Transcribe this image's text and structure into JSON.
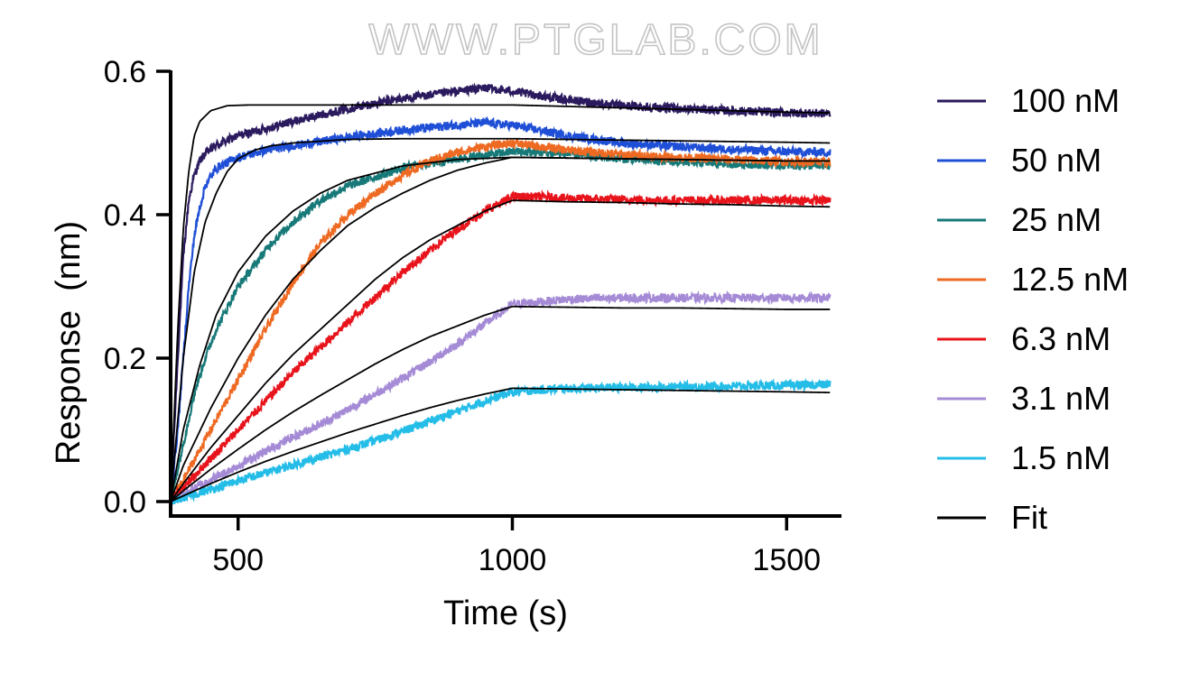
{
  "watermark": "WWW.PTGLAB.COM",
  "chart_data": {
    "type": "line",
    "xlabel": "Time (s)",
    "ylabel": "Response  (nm)",
    "xlim": [
      377,
      1600
    ],
    "ylim": [
      0,
      0.6
    ],
    "x_ticks": [
      500,
      1000,
      1500
    ],
    "x_tick_labels": [
      "500",
      "1000",
      "1500"
    ],
    "y_ticks": [
      0,
      0.2,
      0.4,
      0.6
    ],
    "y_tick_labels": [
      "0.0",
      "0.2",
      "0.4",
      "0.6"
    ],
    "grid": false,
    "legend_position": "right",
    "association_start": 377,
    "dissociation_start": 1000,
    "x_end": 1580,
    "series": [
      {
        "name": "100 nM",
        "color": "#2b1a5e",
        "kind": "data",
        "x": [
          377,
          390,
          400,
          410,
          420,
          430,
          440,
          460,
          500,
          550,
          600,
          700,
          800,
          900,
          950,
          1000,
          1100,
          1200,
          1300,
          1400,
          1500,
          1580
        ],
        "y": [
          0.0,
          0.2,
          0.34,
          0.42,
          0.455,
          0.475,
          0.485,
          0.497,
          0.51,
          0.52,
          0.53,
          0.548,
          0.562,
          0.572,
          0.577,
          0.572,
          0.56,
          0.552,
          0.548,
          0.545,
          0.542,
          0.541
        ]
      },
      {
        "name": "50 nM",
        "color": "#1f4fd6",
        "kind": "data",
        "x": [
          377,
          390,
          400,
          410,
          420,
          430,
          440,
          460,
          500,
          550,
          600,
          700,
          800,
          900,
          950,
          1000,
          1100,
          1200,
          1300,
          1400,
          1500,
          1580
        ],
        "y": [
          0.0,
          0.1,
          0.2,
          0.3,
          0.37,
          0.41,
          0.44,
          0.465,
          0.48,
          0.49,
          0.496,
          0.508,
          0.518,
          0.525,
          0.528,
          0.525,
          0.51,
          0.5,
          0.495,
          0.491,
          0.488,
          0.487
        ]
      },
      {
        "name": "25 nM",
        "color": "#177978",
        "kind": "data",
        "x": [
          377,
          400,
          420,
          440,
          460,
          480,
          500,
          530,
          560,
          600,
          650,
          700,
          800,
          900,
          1000,
          1100,
          1200,
          1300,
          1400,
          1500,
          1580
        ],
        "y": [
          0.0,
          0.08,
          0.15,
          0.2,
          0.24,
          0.27,
          0.3,
          0.33,
          0.36,
          0.39,
          0.42,
          0.44,
          0.465,
          0.478,
          0.488,
          0.485,
          0.478,
          0.474,
          0.471,
          0.469,
          0.468
        ]
      },
      {
        "name": "12.5 nM",
        "color": "#ee6a22",
        "kind": "data",
        "x": [
          377,
          400,
          450,
          500,
          550,
          600,
          650,
          700,
          750,
          800,
          850,
          900,
          950,
          1000,
          1050,
          1100,
          1200,
          1300,
          1400,
          1500,
          1580
        ],
        "y": [
          0.0,
          0.03,
          0.1,
          0.17,
          0.24,
          0.305,
          0.36,
          0.4,
          0.43,
          0.455,
          0.475,
          0.487,
          0.495,
          0.5,
          0.495,
          0.49,
          0.484,
          0.48,
          0.477,
          0.474,
          0.473
        ]
      },
      {
        "name": "6.3 nM",
        "color": "#e8141c",
        "kind": "data",
        "x": [
          377,
          400,
          450,
          500,
          550,
          600,
          650,
          700,
          750,
          800,
          850,
          900,
          950,
          1000,
          1050,
          1100,
          1200,
          1300,
          1400,
          1500,
          1580
        ],
        "y": [
          0.0,
          0.02,
          0.06,
          0.1,
          0.14,
          0.18,
          0.215,
          0.25,
          0.285,
          0.32,
          0.35,
          0.38,
          0.405,
          0.425,
          0.425,
          0.423,
          0.421,
          0.42,
          0.42,
          0.42,
          0.42
        ]
      },
      {
        "name": "3.1 nM",
        "color": "#a58bd6",
        "kind": "data",
        "x": [
          377,
          400,
          450,
          500,
          550,
          600,
          650,
          700,
          750,
          800,
          850,
          900,
          950,
          1000,
          1100,
          1200,
          1300,
          1400,
          1500,
          1580
        ],
        "y": [
          0.0,
          0.01,
          0.03,
          0.05,
          0.07,
          0.09,
          0.108,
          0.128,
          0.15,
          0.172,
          0.195,
          0.22,
          0.248,
          0.275,
          0.282,
          0.284,
          0.284,
          0.284,
          0.284,
          0.284
        ]
      },
      {
        "name": "1.5 nM",
        "color": "#24bde8",
        "kind": "data",
        "x": [
          377,
          400,
          450,
          500,
          550,
          600,
          650,
          700,
          750,
          800,
          850,
          900,
          950,
          1000,
          1100,
          1200,
          1300,
          1400,
          1500,
          1580
        ],
        "y": [
          0.0,
          0.005,
          0.017,
          0.029,
          0.04,
          0.051,
          0.062,
          0.073,
          0.085,
          0.098,
          0.112,
          0.126,
          0.14,
          0.153,
          0.158,
          0.159,
          0.16,
          0.161,
          0.162,
          0.163
        ]
      },
      {
        "name": "Fit",
        "color": "#000000",
        "kind": "fit",
        "curves": [
          {
            "x": [
              377,
              390,
              400,
              410,
              420,
              430,
              450,
              480,
              520,
              600,
              700,
              800,
              900,
              1000,
              1100,
              1200,
              1300,
              1400,
              1500,
              1580
            ],
            "y": [
              0.0,
              0.24,
              0.38,
              0.46,
              0.51,
              0.53,
              0.545,
              0.552,
              0.553,
              0.553,
              0.553,
              0.553,
              0.553,
              0.553,
              0.551,
              0.549,
              0.547,
              0.545,
              0.543,
              0.542
            ]
          },
          {
            "x": [
              377,
              400,
              420,
              440,
              460,
              480,
              500,
              530,
              560,
              600,
              700,
              800,
              900,
              1000,
              1100,
              1200,
              1300,
              1400,
              1500,
              1580
            ],
            "y": [
              0.0,
              0.2,
              0.32,
              0.39,
              0.43,
              0.46,
              0.478,
              0.49,
              0.496,
              0.5,
              0.505,
              0.506,
              0.506,
              0.506,
              0.505,
              0.504,
              0.503,
              0.502,
              0.501,
              0.5
            ]
          },
          {
            "x": [
              377,
              400,
              430,
              460,
              500,
              550,
              600,
              650,
              700,
              800,
              900,
              1000,
              1100,
              1200,
              1300,
              1400,
              1500,
              1580
            ],
            "y": [
              0.0,
              0.1,
              0.19,
              0.26,
              0.32,
              0.37,
              0.405,
              0.43,
              0.448,
              0.468,
              0.477,
              0.48,
              0.479,
              0.478,
              0.477,
              0.476,
              0.475,
              0.475
            ]
          },
          {
            "x": [
              377,
              400,
              450,
              500,
              550,
              600,
              650,
              700,
              750,
              800,
              850,
              900,
              950,
              1000,
              1100,
              1200,
              1300,
              1400,
              1500,
              1580
            ],
            "y": [
              0.0,
              0.05,
              0.13,
              0.2,
              0.26,
              0.31,
              0.35,
              0.385,
              0.41,
              0.43,
              0.448,
              0.462,
              0.472,
              0.48,
              0.479,
              0.478,
              0.477,
              0.476,
              0.475,
              0.475
            ]
          },
          {
            "x": [
              377,
              400,
              450,
              500,
              550,
              600,
              650,
              700,
              750,
              800,
              850,
              900,
              950,
              1000,
              1100,
              1200,
              1300,
              1400,
              1500,
              1580
            ],
            "y": [
              0.0,
              0.025,
              0.075,
              0.12,
              0.165,
              0.205,
              0.24,
              0.275,
              0.31,
              0.34,
              0.365,
              0.385,
              0.405,
              0.42,
              0.418,
              0.417,
              0.415,
              0.414,
              0.412,
              0.411
            ]
          },
          {
            "x": [
              377,
              400,
              450,
              500,
              550,
              600,
              650,
              700,
              750,
              800,
              850,
              900,
              950,
              1000,
              1100,
              1200,
              1300,
              1400,
              1500,
              1580
            ],
            "y": [
              0.0,
              0.015,
              0.045,
              0.073,
              0.1,
              0.125,
              0.148,
              0.17,
              0.192,
              0.212,
              0.23,
              0.245,
              0.26,
              0.272,
              0.271,
              0.27,
              0.27,
              0.269,
              0.268,
              0.268
            ]
          },
          {
            "x": [
              377,
              400,
              450,
              500,
              550,
              600,
              650,
              700,
              750,
              800,
              850,
              900,
              950,
              1000,
              1100,
              1200,
              1300,
              1400,
              1500,
              1580
            ],
            "y": [
              0.0,
              0.008,
              0.025,
              0.041,
              0.056,
              0.07,
              0.083,
              0.096,
              0.108,
              0.12,
              0.131,
              0.141,
              0.15,
              0.158,
              0.157,
              0.156,
              0.155,
              0.154,
              0.153,
              0.152
            ]
          }
        ]
      }
    ]
  }
}
